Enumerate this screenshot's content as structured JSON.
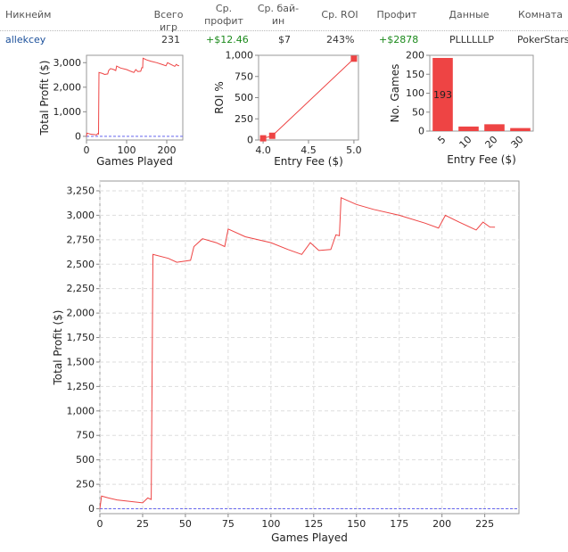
{
  "table": {
    "headers": [
      "Никнейм",
      "Всего игр",
      "Ср. профит",
      "Ср. бай-ин",
      "Ср. ROI",
      "Профит",
      "Данные",
      "Комната"
    ],
    "row": {
      "nickname": "allekcey",
      "total_games": "231",
      "avg_profit": "+$12.46",
      "avg_buyin": "$7",
      "avg_roi": "243%",
      "profit": "+$2878",
      "data": "PLLLLLLP",
      "room": "PokerStars"
    }
  },
  "colors": {
    "series": "#ee4444",
    "zero_line": "#6666ee",
    "link": "#1a4f9a",
    "positive": "#1c8a1c"
  },
  "chart_data": [
    {
      "id": "small-profit",
      "type": "line",
      "xlabel": "Games Played",
      "ylabel": "Total Profit ($)",
      "xlim": [
        0,
        240
      ],
      "ylim": [
        -150,
        3300
      ],
      "xticks": [
        0,
        100,
        200
      ],
      "yticks": [
        0,
        1000,
        2000,
        3000
      ],
      "points": [
        [
          0,
          0
        ],
        [
          1,
          130
        ],
        [
          5,
          110
        ],
        [
          10,
          90
        ],
        [
          25,
          60
        ],
        [
          28,
          110
        ],
        [
          30,
          95
        ],
        [
          31,
          2600
        ],
        [
          40,
          2560
        ],
        [
          45,
          2520
        ],
        [
          53,
          2540
        ],
        [
          55,
          2680
        ],
        [
          60,
          2760
        ],
        [
          68,
          2720
        ],
        [
          73,
          2680
        ],
        [
          75,
          2860
        ],
        [
          85,
          2780
        ],
        [
          100,
          2720
        ],
        [
          110,
          2650
        ],
        [
          118,
          2600
        ],
        [
          123,
          2720
        ],
        [
          128,
          2640
        ],
        [
          135,
          2650
        ],
        [
          138,
          2800
        ],
        [
          140,
          2790
        ],
        [
          141,
          3180
        ],
        [
          150,
          3110
        ],
        [
          160,
          3060
        ],
        [
          175,
          3000
        ],
        [
          190,
          2920
        ],
        [
          198,
          2870
        ],
        [
          202,
          3000
        ],
        [
          210,
          2930
        ],
        [
          220,
          2850
        ],
        [
          224,
          2930
        ],
        [
          228,
          2880
        ],
        [
          231,
          2878
        ]
      ]
    },
    {
      "id": "roi-vs-fee",
      "type": "scatter",
      "xlabel": "Entry Fee ($)",
      "ylabel": "ROI %",
      "xlim": [
        3.95,
        5.05
      ],
      "ylim": [
        0,
        1000
      ],
      "xticks": [
        4.0,
        4.5,
        5.0
      ],
      "yticks": [
        0,
        250,
        500,
        750,
        1000
      ],
      "points": [
        [
          4.0,
          20
        ],
        [
          4.1,
          50
        ],
        [
          5.0,
          960
        ]
      ]
    },
    {
      "id": "games-by-fee",
      "type": "bar",
      "xlabel": "Entry Fee ($)",
      "ylabel": "No. Games",
      "categories": [
        "5",
        "10",
        "20",
        "30"
      ],
      "values": [
        193,
        12,
        18,
        8
      ],
      "data_labels": [
        "193",
        "",
        "",
        ""
      ],
      "ylim": [
        0,
        200
      ],
      "yticks": [
        0,
        50,
        100,
        150,
        200
      ]
    },
    {
      "id": "large-profit",
      "type": "line",
      "xlabel": "Games Played",
      "ylabel": "Total Profit ($)",
      "xlim": [
        0,
        245
      ],
      "ylim": [
        -50,
        3350
      ],
      "xticks": [
        0,
        25,
        50,
        75,
        100,
        125,
        150,
        175,
        200,
        225
      ],
      "yticks": [
        0,
        250,
        500,
        750,
        1000,
        1250,
        1500,
        1750,
        2000,
        2250,
        2500,
        2750,
        3000,
        3250
      ],
      "grid": true
    }
  ]
}
